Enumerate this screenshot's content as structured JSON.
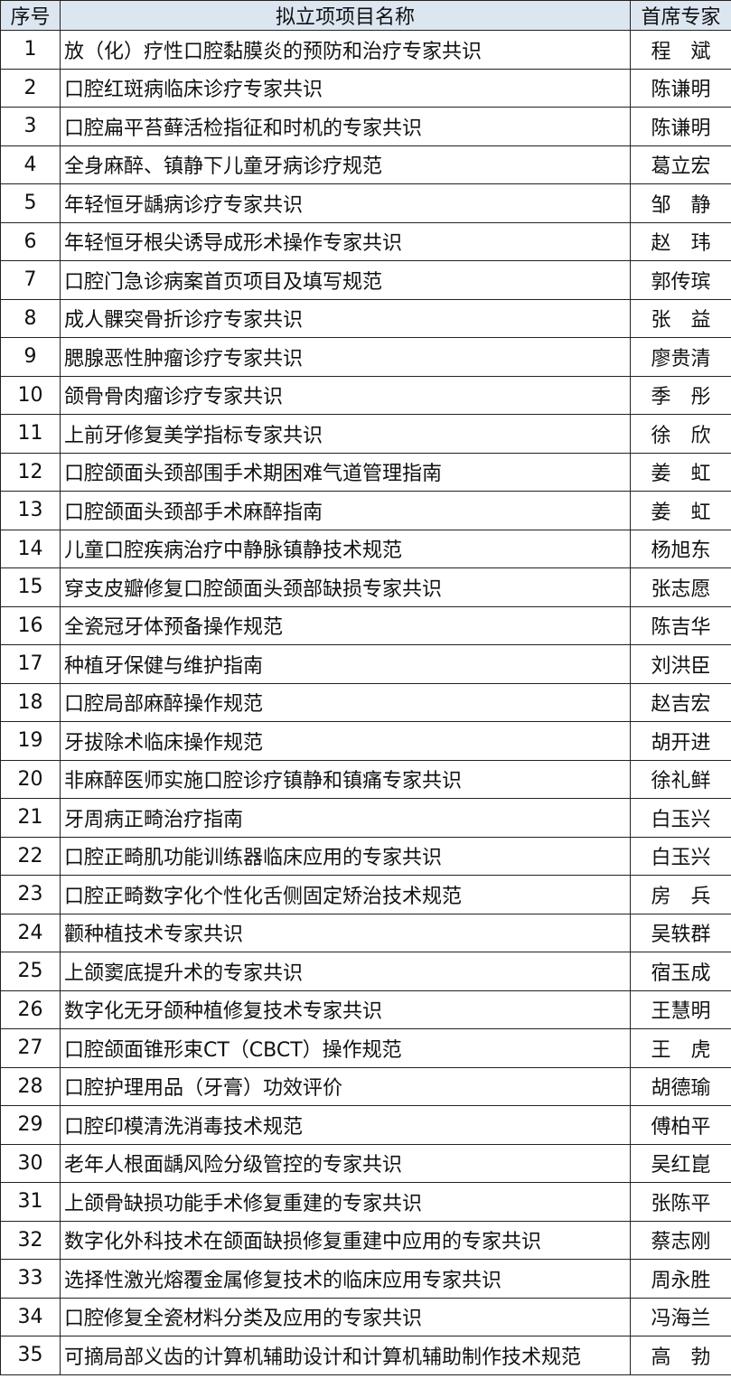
{
  "table": {
    "headers": [
      "序号",
      "拟立项项目名称",
      "首席专家"
    ],
    "rows": [
      {
        "no": "1",
        "title": "放（化）疗性口腔黏膜炎的预防和治疗专家共识",
        "expert": "程　斌"
      },
      {
        "no": "2",
        "title": "口腔红斑病临床诊疗专家共识",
        "expert": "陈谦明"
      },
      {
        "no": "3",
        "title": "口腔扁平苔藓活检指征和时机的专家共识",
        "expert": "陈谦明"
      },
      {
        "no": "4",
        "title": "全身麻醉、镇静下儿童牙病诊疗规范",
        "expert": "葛立宏"
      },
      {
        "no": "5",
        "title": "年轻恒牙龋病诊疗专家共识",
        "expert": "邹　静"
      },
      {
        "no": "6",
        "title": "年轻恒牙根尖诱导成形术操作专家共识",
        "expert": "赵　玮"
      },
      {
        "no": "7",
        "title": "口腔门急诊病案首页项目及填写规范",
        "expert": "郭传瑸"
      },
      {
        "no": "8",
        "title": "成人髁突骨折诊疗专家共识",
        "expert": "张　益"
      },
      {
        "no": "9",
        "title": "腮腺恶性肿瘤诊疗专家共识",
        "expert": "廖贵清"
      },
      {
        "no": "10",
        "title": "颌骨骨肉瘤诊疗专家共识",
        "expert": "季　彤"
      },
      {
        "no": "11",
        "title": "上前牙修复美学指标专家共识",
        "expert": "徐　欣"
      },
      {
        "no": "12",
        "title": "口腔颌面头颈部围手术期困难气道管理指南",
        "expert": "姜　虹"
      },
      {
        "no": "13",
        "title": "口腔颌面头颈部手术麻醉指南",
        "expert": "姜　虹"
      },
      {
        "no": "14",
        "title": "儿童口腔疾病治疗中静脉镇静技术规范",
        "expert": "杨旭东"
      },
      {
        "no": "15",
        "title": "穿支皮瓣修复口腔颌面头颈部缺损专家共识",
        "expert": "张志愿"
      },
      {
        "no": "16",
        "title": "全瓷冠牙体预备操作规范",
        "expert": "陈吉华"
      },
      {
        "no": "17",
        "title": "种植牙保健与维护指南",
        "expert": "刘洪臣"
      },
      {
        "no": "18",
        "title": "口腔局部麻醉操作规范",
        "expert": "赵吉宏"
      },
      {
        "no": "19",
        "title": "牙拔除术临床操作规范",
        "expert": "胡开进"
      },
      {
        "no": "20",
        "title": "非麻醉医师实施口腔诊疗镇静和镇痛专家共识",
        "expert": "徐礼鲜"
      },
      {
        "no": "21",
        "title": "牙周病正畸治疗指南",
        "expert": "白玉兴"
      },
      {
        "no": "22",
        "title": "口腔正畸肌功能训练器临床应用的专家共识",
        "expert": "白玉兴"
      },
      {
        "no": "23",
        "title": "口腔正畸数字化个性化舌侧固定矫治技术规范",
        "expert": "房　兵"
      },
      {
        "no": "24",
        "title": "颧种植技术专家共识",
        "expert": "吴轶群"
      },
      {
        "no": "25",
        "title": "上颌窦底提升术的专家共识",
        "expert": "宿玉成"
      },
      {
        "no": "26",
        "title": "数字化无牙颌种植修复技术专家共识",
        "expert": "王慧明"
      },
      {
        "no": "27",
        "title": "口腔颌面锥形束CT（CBCT）操作规范",
        "expert": "王　虎"
      },
      {
        "no": "28",
        "title": "口腔护理用品（牙膏）功效评价",
        "expert": "胡德瑜"
      },
      {
        "no": "29",
        "title": "口腔印模清洗消毒技术规范",
        "expert": "傅柏平"
      },
      {
        "no": "30",
        "title": "老年人根面龋风险分级管控的专家共识",
        "expert": "吴红崑"
      },
      {
        "no": "31",
        "title": "上颌骨缺损功能手术修复重建的专家共识",
        "expert": "张陈平"
      },
      {
        "no": "32",
        "title": "数字化外科技术在颌面缺损修复重建中应用的专家共识",
        "expert": "蔡志刚"
      },
      {
        "no": "33",
        "title": "选择性激光熔覆金属修复技术的临床应用专家共识",
        "expert": "周永胜"
      },
      {
        "no": "34",
        "title": "口腔修复全瓷材料分类及应用的专家共识",
        "expert": "冯海兰"
      },
      {
        "no": "35",
        "title": "可摘局部义齿的计算机辅助设计和计算机辅助制作技术规范",
        "expert": "高　勃"
      }
    ]
  },
  "colors": {
    "header_bg": "#dce6f1",
    "border": "#222222"
  }
}
